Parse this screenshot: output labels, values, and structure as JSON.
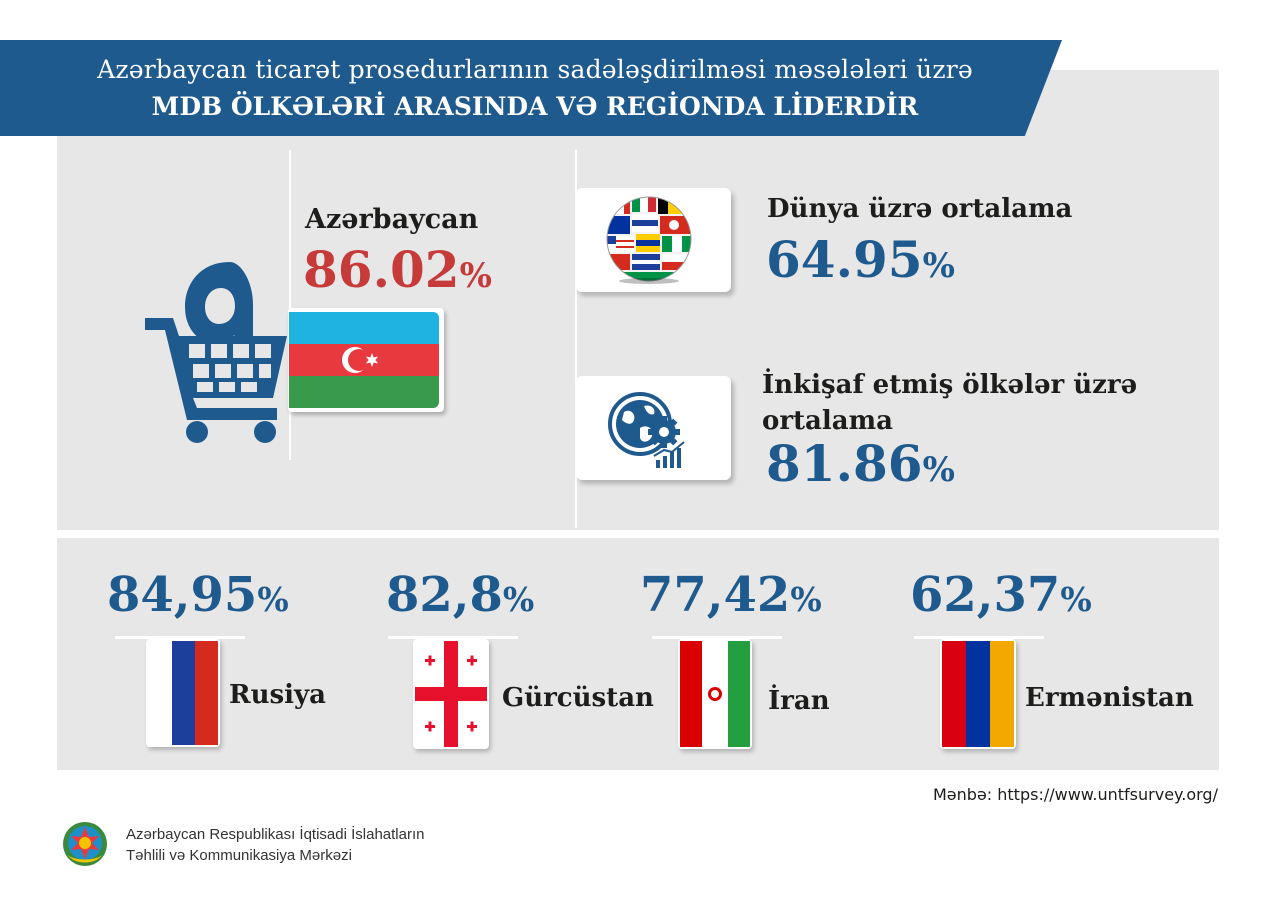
{
  "header": {
    "line1": "Azərbaycan ticarət prosedurlarının sadələşdirilməsi məsələləri üzrə",
    "line2": "MDB ÖLKƏLƏRİ ARASINDA VƏ REGİONDA LİDERDİR"
  },
  "azerbaijan": {
    "name": "Azərbaycan",
    "value": "86.02",
    "unit": "%",
    "flag_colors": [
      "#1fb3e1",
      "#e8393f",
      "#3a9a4c"
    ]
  },
  "world_average": {
    "label": "Dünya üzrə ortalama",
    "value": "64.95",
    "unit": "%",
    "icon": "globe-flags-icon"
  },
  "developed_average": {
    "label": "İnkişaf etmiş ölkələr üzrə ortalama",
    "value": "81.86",
    "unit": "%",
    "icon": "globe-gear-chart-icon"
  },
  "countries": [
    {
      "name": "Rusiya",
      "value": "84,95",
      "unit": "%",
      "flag_colors": [
        "#ffffff",
        "#1c3f9b",
        "#d52b1e"
      ]
    },
    {
      "name": "Gürcüstan",
      "value": "82,8",
      "unit": "%",
      "flag_colors": [
        "#ffffff",
        "#e8112d"
      ]
    },
    {
      "name": "İran",
      "value": "77,42",
      "unit": "%",
      "flag_colors": [
        "#239f40",
        "#ffffff",
        "#da0000"
      ]
    },
    {
      "name": "Ermənistan",
      "value": "62,37",
      "unit": "%",
      "flag_colors": [
        "#d90012",
        "#0033a0",
        "#f2a800"
      ]
    }
  ],
  "colors": {
    "brand_blue": "#1f5a8e",
    "highlight_red": "#c73a3a",
    "panel_grey": "#e7e7e7"
  },
  "source": "Mənbə: https://www.untfsurvey.org/",
  "footer": {
    "org_line1": "Azərbaycan Respublikası İqtisadi İslahatların",
    "org_line2": "Təhlili və Kommunikasiya Mərkəzi"
  }
}
